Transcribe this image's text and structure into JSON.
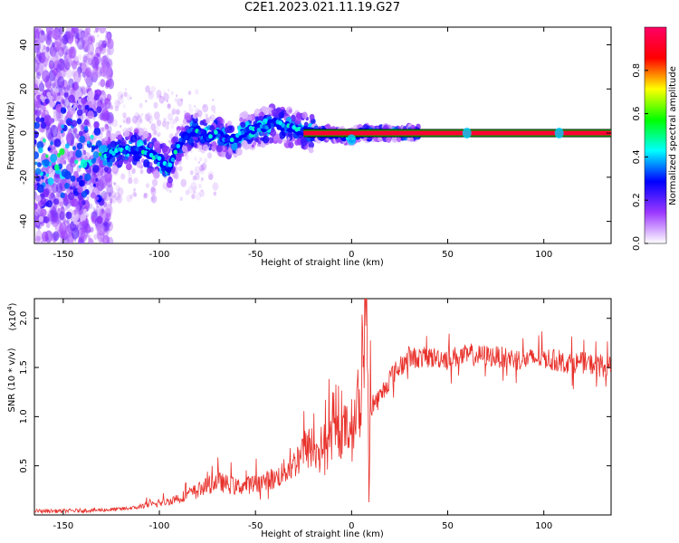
{
  "title": "C2E1.2023.021.11.19.G27",
  "chart_data": [
    {
      "type": "heatmap",
      "xlabel": "Height of straight line (km)",
      "ylabel": "Frequency (Hz)",
      "xlim": [
        -165,
        135
      ],
      "ylim": [
        -50,
        48
      ],
      "x_ticks": [
        -150,
        -100,
        -50,
        0,
        50,
        100
      ],
      "y_ticks": [
        -40,
        -20,
        0,
        20,
        40
      ],
      "colorbar": {
        "label": "Normalized spectral amplitude",
        "range": [
          0.0,
          1.0
        ],
        "ticks": [
          "0.0",
          "0.2",
          "0.4",
          "0.6",
          "0.8"
        ],
        "colors": [
          "#ffffff",
          "#9c38ff",
          "#0000ff",
          "#00ffff",
          "#00ff00",
          "#ffff00",
          "#ff0000",
          "#ff0066"
        ]
      },
      "ridge": {
        "x": [
          -128,
          -120,
          -110,
          -100,
          -95,
          -90,
          -85,
          -80,
          -75,
          -70,
          -65,
          -60,
          -55,
          -50,
          -45,
          -40,
          -35,
          -30,
          -25,
          -20,
          -10,
          0,
          5,
          10,
          60,
          70,
          108,
          134
        ],
        "y": [
          -10,
          -8,
          -7,
          -12,
          -16,
          -5,
          0,
          2,
          -2,
          0,
          -3,
          -2,
          1,
          2,
          3,
          5,
          3,
          2,
          1,
          0,
          0,
          -2,
          0,
          0,
          0,
          0,
          0,
          0
        ]
      },
      "grid": false
    },
    {
      "type": "line",
      "xlabel": "Height of straight line (km)",
      "ylabel": "SNR (10 * v/v)",
      "y_multiplier": "(x10^4)",
      "xlim": [
        -165,
        135
      ],
      "ylim": [
        0,
        2.2
      ],
      "x_ticks": [
        -150,
        -100,
        -50,
        0,
        50,
        100
      ],
      "y_ticks": [
        "0.5",
        "1.0",
        "1.5",
        "2.0"
      ],
      "series": [
        {
          "color": "#e8302a",
          "x": [
            -165,
            -150,
            -130,
            -120,
            -110,
            -100,
            -90,
            -80,
            -70,
            -60,
            -50,
            -40,
            -30,
            -25,
            -20,
            -10,
            0,
            5,
            8,
            9,
            10,
            15,
            20,
            30,
            40,
            50,
            60,
            70,
            80,
            90,
            100,
            110,
            120,
            134
          ],
          "y": [
            0.04,
            0.04,
            0.05,
            0.06,
            0.08,
            0.1,
            0.15,
            0.22,
            0.3,
            0.25,
            0.28,
            0.32,
            0.45,
            0.6,
            0.55,
            0.7,
            0.8,
            1.0,
            2.2,
            0.1,
            1.1,
            1.2,
            1.4,
            1.6,
            1.6,
            1.6,
            1.62,
            1.62,
            1.6,
            1.58,
            1.6,
            1.55,
            1.55,
            1.5
          ]
        }
      ],
      "grid": false
    }
  ]
}
